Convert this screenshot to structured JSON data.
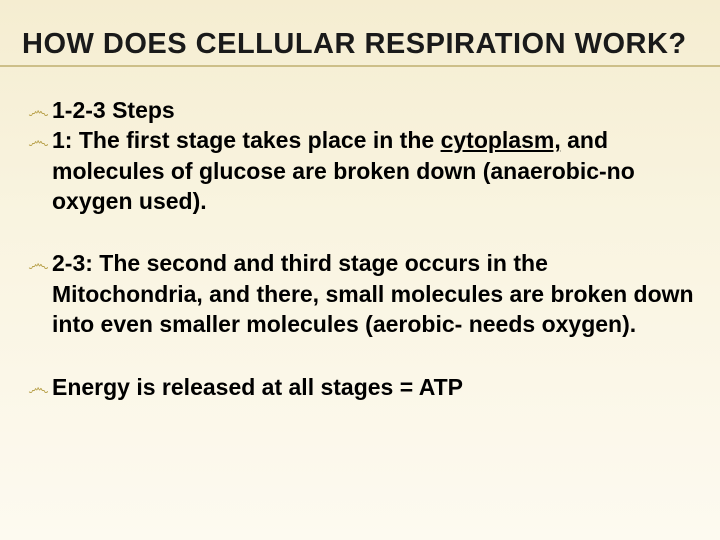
{
  "slide": {
    "background_gradient": [
      "#f5edd1",
      "#f9f4e0",
      "#fdfaf0"
    ],
    "rule_color": "#cdbf89",
    "bullet_glyph": "෴",
    "bullet_color": "#b9a24c",
    "title": {
      "text": "HOW DOES CELLULAR RESPIRATION WORK?",
      "font_size_pt": 22,
      "weight": "bold",
      "color": "#000000"
    },
    "body_font": {
      "size_pt": 17,
      "weight": "bold",
      "color": "#000000"
    },
    "groups": [
      {
        "lines": [
          {
            "runs": [
              {
                "text": "1-2-3 Steps"
              }
            ]
          },
          {
            "runs": [
              {
                "text": "1: The first stage takes place in the "
              },
              {
                "text": "cytoplasm,",
                "underline": true
              },
              {
                "text": " and molecules of glucose are broken down (anaerobic-no oxygen used)."
              }
            ]
          }
        ]
      },
      {
        "lines": [
          {
            "runs": [
              {
                "text": "2-3: The second and third stage occurs in the Mitochondria, and there, small molecules are broken down into even smaller molecules (aerobic- needs oxygen)."
              }
            ]
          }
        ]
      },
      {
        "lines": [
          {
            "runs": [
              {
                "text": "Energy is released at all stages = ATP"
              }
            ]
          }
        ]
      }
    ]
  }
}
